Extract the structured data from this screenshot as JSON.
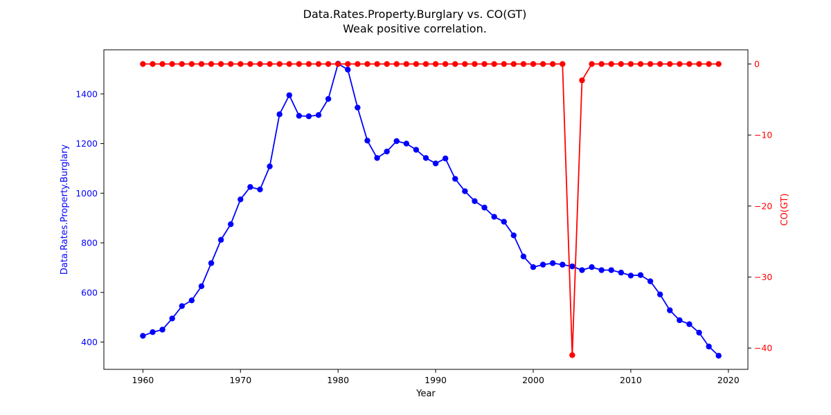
{
  "chart_data": {
    "type": "line",
    "title": "Data.Rates.Property.Burglary vs. CO(GT)",
    "subtitle": "Weak positive correlation.",
    "xlabel": "Year",
    "ylabel_left": "Data.Rates.Property.Burglary",
    "ylabel_right": "CO(GT)",
    "xlim": [
      1956,
      2022
    ],
    "ylim_left": [
      290,
      1578
    ],
    "ylim_right": [
      -43,
      2
    ],
    "x_ticks": [
      1960,
      1970,
      1980,
      1990,
      2000,
      2010,
      2020
    ],
    "y_ticks_left": [
      400,
      600,
      800,
      1000,
      1200,
      1400
    ],
    "y_ticks_right": [
      0,
      -10,
      -20,
      -30,
      -40
    ],
    "grid": false,
    "x": [
      1960,
      1961,
      1962,
      1963,
      1964,
      1965,
      1966,
      1967,
      1968,
      1969,
      1970,
      1971,
      1972,
      1973,
      1974,
      1975,
      1976,
      1977,
      1978,
      1979,
      1980,
      1981,
      1982,
      1983,
      1984,
      1985,
      1986,
      1987,
      1988,
      1989,
      1990,
      1991,
      1992,
      1993,
      1994,
      1995,
      1996,
      1997,
      1998,
      1999,
      2000,
      2001,
      2002,
      2003,
      2004,
      2005,
      2006,
      2007,
      2008,
      2009,
      2010,
      2011,
      2012,
      2013,
      2014,
      2015,
      2016,
      2017,
      2018,
      2019
    ],
    "series": [
      {
        "name": "Data.Rates.Property.Burglary",
        "axis": "left",
        "color": "#0000ff",
        "values": [
          425,
          440,
          450,
          495,
          545,
          568,
          625,
          718,
          812,
          875,
          975,
          1025,
          1015,
          1108,
          1318,
          1395,
          1312,
          1310,
          1315,
          1380,
          1522,
          1498,
          1345,
          1212,
          1142,
          1168,
          1210,
          1200,
          1175,
          1142,
          1120,
          1140,
          1058,
          1008,
          968,
          942,
          905,
          885,
          830,
          745,
          702,
          712,
          718,
          712,
          705,
          690,
          702,
          690,
          690,
          680,
          668,
          670,
          645,
          592,
          528,
          488,
          472,
          438,
          382,
          345
        ]
      },
      {
        "name": "CO(GT)",
        "axis": "right",
        "color": "#ff0000",
        "values": [
          0,
          0,
          0,
          0,
          0,
          0,
          0,
          0,
          0,
          0,
          0,
          0,
          0,
          0,
          0,
          0,
          0,
          0,
          0,
          0,
          0,
          0,
          0,
          0,
          0,
          0,
          0,
          0,
          0,
          0,
          0,
          0,
          0,
          0,
          0,
          0,
          0,
          0,
          0,
          0,
          0,
          0,
          0,
          0,
          -41,
          -2.3,
          0,
          0,
          0,
          0,
          0,
          0,
          0,
          0,
          0,
          0,
          0,
          0,
          0,
          0
        ]
      }
    ]
  }
}
